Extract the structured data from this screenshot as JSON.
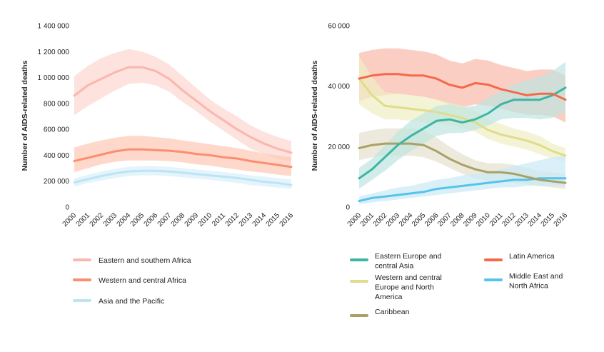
{
  "chart_data": [
    {
      "type": "line",
      "ylabel": "Number of AIDS-related deaths",
      "ylim": [
        0,
        1400000
      ],
      "yticks": [
        "0",
        "200 000",
        "400 000",
        "600 000",
        "800 000",
        "1 000 000",
        "1 200 000",
        "1 400 000"
      ],
      "x": [
        "2000",
        "2001",
        "2002",
        "2003",
        "2004",
        "2005",
        "2006",
        "2007",
        "2008",
        "2009",
        "2010",
        "2011",
        "2012",
        "2013",
        "2014",
        "2015",
        "2016"
      ],
      "grid": false,
      "legend_placement": "bottom",
      "series": [
        {
          "name": "Eastern and southern Africa",
          "color": "#fbb6ae",
          "band_color": "#fcd5cf",
          "values": [
            860000,
            940000,
            990000,
            1040000,
            1080000,
            1080000,
            1050000,
            990000,
            900000,
            820000,
            740000,
            670000,
            600000,
            540000,
            490000,
            450000,
            420000
          ],
          "lower": [
            710000,
            780000,
            840000,
            900000,
            950000,
            960000,
            940000,
            890000,
            810000,
            740000,
            660000,
            590000,
            520000,
            450000,
            410000,
            370000,
            350000
          ],
          "upper": [
            1010000,
            1090000,
            1150000,
            1190000,
            1220000,
            1200000,
            1160000,
            1100000,
            1010000,
            920000,
            830000,
            760000,
            700000,
            630000,
            580000,
            540000,
            510000
          ]
        },
        {
          "name": "Western and central Africa",
          "color": "#fa8e6e",
          "band_color": "#fdc9b5",
          "values": [
            355000,
            380000,
            405000,
            430000,
            445000,
            445000,
            440000,
            435000,
            425000,
            410000,
            400000,
            385000,
            375000,
            355000,
            340000,
            325000,
            310000
          ],
          "lower": [
            270000,
            300000,
            330000,
            350000,
            360000,
            360000,
            360000,
            355000,
            345000,
            330000,
            320000,
            305000,
            290000,
            275000,
            265000,
            250000,
            240000
          ],
          "upper": [
            460000,
            490000,
            515000,
            535000,
            550000,
            550000,
            540000,
            530000,
            515000,
            500000,
            485000,
            470000,
            455000,
            435000,
            415000,
            400000,
            385000
          ]
        },
        {
          "name": "Asia and the Pacific",
          "color": "#bde3f5",
          "band_color": "#d8effa",
          "values": [
            190000,
            215000,
            240000,
            260000,
            275000,
            280000,
            280000,
            275000,
            265000,
            255000,
            245000,
            235000,
            225000,
            210000,
            195000,
            185000,
            170000
          ],
          "lower": [
            160000,
            185000,
            205000,
            225000,
            240000,
            245000,
            245000,
            240000,
            230000,
            220000,
            210000,
            200000,
            185000,
            170000,
            160000,
            150000,
            140000
          ],
          "upper": [
            220000,
            250000,
            275000,
            295000,
            310000,
            315000,
            315000,
            310000,
            300000,
            290000,
            280000,
            270000,
            260000,
            245000,
            235000,
            225000,
            210000
          ]
        }
      ]
    },
    {
      "type": "line",
      "ylabel": "Number of AIDS-related deaths",
      "ylim": [
        0,
        60000
      ],
      "yticks": [
        "0",
        "20 000",
        "40 000",
        "60 000"
      ],
      "x": [
        "2000",
        "2001",
        "2002",
        "2003",
        "2004",
        "2005",
        "2006",
        "2007",
        "2008",
        "2009",
        "2010",
        "2011",
        "2012",
        "2013",
        "2014",
        "2015",
        "2016"
      ],
      "grid": false,
      "legend_placement": "bottom",
      "series": [
        {
          "name": "Eastern Europe and central Asia",
          "color": "#3bb6a3",
          "band_color": "#bfe6df",
          "values": [
            9500,
            12500,
            16500,
            20500,
            23500,
            26000,
            28500,
            29000,
            28000,
            29000,
            31000,
            34000,
            35500,
            35500,
            35500,
            37000,
            39500
          ],
          "lower": [
            6000,
            9000,
            12000,
            15500,
            18500,
            21000,
            23500,
            24500,
            24500,
            25500,
            27000,
            29000,
            29500,
            29500,
            29000,
            29500,
            31500
          ],
          "upper": [
            13000,
            16000,
            20500,
            25000,
            28500,
            31000,
            33500,
            34000,
            33000,
            33500,
            36000,
            38500,
            40500,
            42000,
            43000,
            45000,
            48000
          ]
        },
        {
          "name": "Western and central Europe and North America",
          "color": "#dfdd8a",
          "band_color": "#efeec3",
          "values": [
            42500,
            37000,
            33500,
            33000,
            32500,
            32000,
            31500,
            30500,
            29500,
            28000,
            25500,
            24000,
            23000,
            22000,
            20500,
            18500,
            17000
          ],
          "lower": [
            34000,
            31000,
            29000,
            29000,
            28500,
            28000,
            27500,
            27000,
            26000,
            25000,
            22500,
            21000,
            20000,
            19000,
            17500,
            16000,
            15000
          ],
          "upper": [
            50000,
            43000,
            38000,
            37500,
            37000,
            36500,
            35500,
            34500,
            33500,
            32000,
            29000,
            27500,
            26000,
            25000,
            23500,
            21000,
            19500
          ]
        },
        {
          "name": "Caribbean",
          "color": "#a9a164",
          "band_color": "#e6e1cf",
          "values": [
            19500,
            20500,
            21000,
            21000,
            21000,
            20500,
            18500,
            16000,
            14000,
            12500,
            11500,
            11500,
            11000,
            10000,
            9000,
            8500,
            8000
          ],
          "lower": [
            15500,
            16500,
            17000,
            17000,
            17000,
            16500,
            15000,
            13000,
            11000,
            9500,
            8500,
            8500,
            8000,
            7500,
            7000,
            6500,
            6000
          ],
          "upper": [
            24500,
            25500,
            26000,
            26000,
            26000,
            25500,
            23000,
            20000,
            17500,
            15500,
            14500,
            14500,
            14000,
            13000,
            12000,
            11500,
            11000
          ]
        },
        {
          "name": "Latin America",
          "color": "#f4694a",
          "band_color": "#f9b9aa",
          "values": [
            42500,
            43500,
            44000,
            44000,
            43500,
            43500,
            42500,
            40500,
            39500,
            41000,
            40500,
            39000,
            38000,
            37000,
            37500,
            37500,
            35500
          ],
          "lower": [
            35000,
            36500,
            37000,
            37500,
            37000,
            36500,
            35500,
            34000,
            33000,
            34000,
            33500,
            32500,
            31500,
            30500,
            30500,
            30000,
            28000
          ],
          "upper": [
            51000,
            52000,
            52500,
            52500,
            52000,
            51500,
            50500,
            48500,
            47500,
            49000,
            48500,
            47000,
            46000,
            45000,
            45500,
            45500,
            43500
          ]
        },
        {
          "name": "Middle East and North Africa",
          "color": "#55c3ea",
          "band_color": "#c9eaf7",
          "values": [
            2000,
            3000,
            3500,
            4000,
            4500,
            5000,
            6000,
            6500,
            7000,
            7500,
            8000,
            8500,
            9000,
            9000,
            9500,
            9500,
            9500
          ],
          "lower": [
            1000,
            1500,
            2000,
            2500,
            3000,
            3500,
            4000,
            4500,
            5000,
            5500,
            6000,
            6500,
            6500,
            7000,
            7000,
            7000,
            7000
          ],
          "upper": [
            3500,
            4500,
            5500,
            6500,
            7000,
            8000,
            9000,
            9500,
            10500,
            11000,
            11500,
            12500,
            13500,
            14500,
            15500,
            16500,
            17000
          ]
        }
      ]
    }
  ]
}
